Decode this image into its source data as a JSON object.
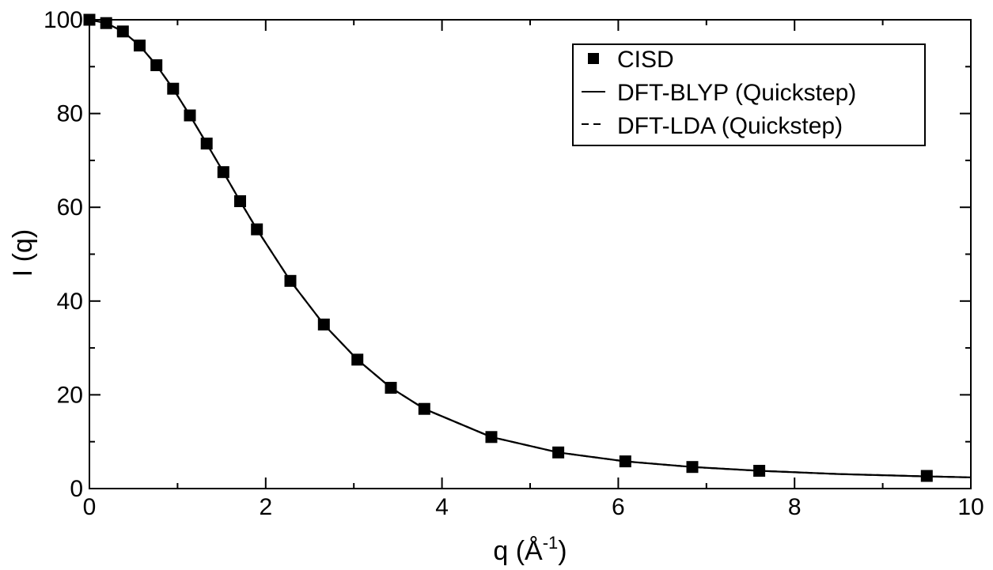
{
  "chart_data": {
    "type": "scatter",
    "xlabel": "q (Å",
    "xlabel_sup": "-1",
    "xlabel_close": ")",
    "ylabel": "I (q)",
    "xlim": [
      0,
      10
    ],
    "ylim": [
      0,
      100
    ],
    "x_ticks": [
      "0",
      "2",
      "4",
      "6",
      "8",
      "10"
    ],
    "y_ticks": [
      "0",
      "20",
      "40",
      "60",
      "80",
      "100"
    ],
    "grid": false,
    "legend_position": "top-right",
    "series": [
      {
        "name": "CISD",
        "kind": "markers",
        "marker": "square",
        "x": [
          0.0,
          0.19,
          0.38,
          0.57,
          0.76,
          0.95,
          1.14,
          1.33,
          1.52,
          1.71,
          1.9,
          2.28,
          2.66,
          3.04,
          3.42,
          3.8,
          4.56,
          5.32,
          6.08,
          6.84,
          7.6,
          9.5
        ],
        "y": [
          100,
          99.3,
          97.5,
          94.5,
          90.3,
          85.3,
          79.6,
          73.6,
          67.5,
          61.3,
          55.3,
          44.3,
          35.0,
          27.5,
          21.5,
          17.0,
          11.0,
          7.7,
          5.8,
          4.6,
          3.8,
          2.7
        ]
      },
      {
        "name": "DFT-BLYP (Quickstep)",
        "kind": "line",
        "dash": "solid",
        "x": [
          0.0,
          0.19,
          0.38,
          0.57,
          0.76,
          0.95,
          1.14,
          1.33,
          1.52,
          1.71,
          1.9,
          2.28,
          2.66,
          3.04,
          3.42,
          3.8,
          4.56,
          5.32,
          6.08,
          6.84,
          7.6,
          8.5,
          9.5,
          10.0
        ],
        "y": [
          100,
          99.3,
          97.5,
          94.5,
          90.3,
          85.3,
          79.6,
          73.6,
          67.5,
          61.3,
          55.3,
          44.3,
          35.0,
          27.5,
          21.5,
          17.0,
          11.0,
          7.7,
          5.8,
          4.6,
          3.8,
          3.1,
          2.6,
          2.4
        ]
      },
      {
        "name": "DFT-LDA (Quickstep)",
        "kind": "line",
        "dash": "dashed",
        "x": [
          0.0,
          0.19,
          0.38,
          0.57,
          0.76,
          0.95,
          1.14,
          1.33,
          1.52,
          1.71,
          1.9,
          2.28,
          2.66,
          3.04,
          3.42,
          3.8,
          4.56,
          5.32,
          6.08,
          6.84,
          7.6,
          8.5,
          9.5,
          10.0
        ],
        "y": [
          100,
          99.3,
          97.5,
          94.5,
          90.3,
          85.3,
          79.6,
          73.6,
          67.5,
          61.3,
          55.3,
          44.3,
          35.0,
          27.5,
          21.5,
          17.0,
          11.0,
          7.7,
          5.8,
          4.6,
          3.8,
          3.1,
          2.6,
          2.4
        ]
      }
    ]
  }
}
